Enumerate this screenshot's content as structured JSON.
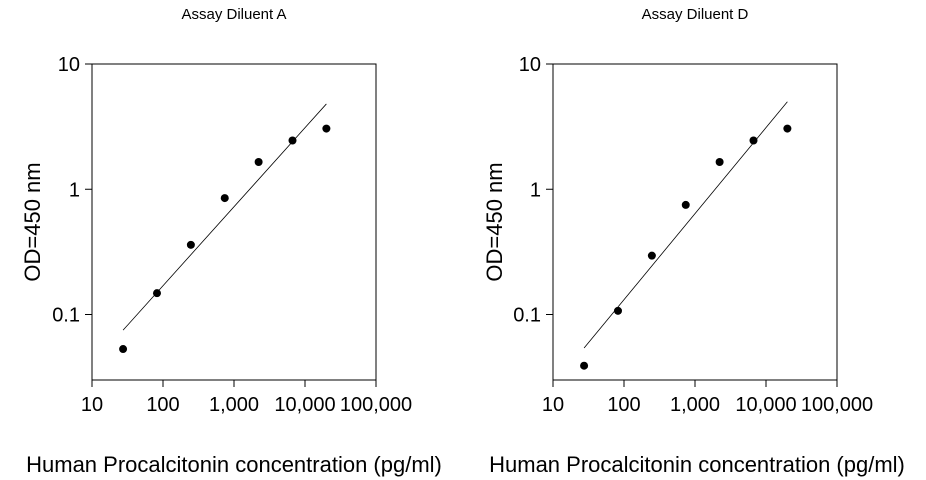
{
  "chart_data": [
    {
      "type": "scatter",
      "title": "Assay Diluent A",
      "xlabel": "Human Procalcitonin concentration (pg/ml)",
      "ylabel": "OD=450 nm",
      "x_scale": "log",
      "y_scale": "log",
      "xlim": [
        10,
        100000
      ],
      "ylim": [
        0.03,
        10
      ],
      "x_ticks": [
        10,
        100,
        1000,
        10000,
        100000
      ],
      "x_tick_labels": [
        "10",
        "100",
        "1,000",
        "10,000",
        "100,000"
      ],
      "y_ticks": [
        0.1,
        1,
        10
      ],
      "y_tick_labels": [
        "0.1",
        "1",
        "10"
      ],
      "grid": false,
      "points": [
        {
          "x": 27.4,
          "y": 0.053
        },
        {
          "x": 82.3,
          "y": 0.148
        },
        {
          "x": 247,
          "y": 0.36
        },
        {
          "x": 741,
          "y": 0.85
        },
        {
          "x": 2222,
          "y": 1.65
        },
        {
          "x": 6667,
          "y": 2.45
        },
        {
          "x": 20000,
          "y": 3.05
        }
      ],
      "fit_line": [
        {
          "x": 27.4,
          "y": 0.075
        },
        {
          "x": 20000,
          "y": 4.8
        }
      ]
    },
    {
      "type": "scatter",
      "title": "Assay Diluent D",
      "xlabel": "Human Procalcitonin concentration (pg/ml)",
      "ylabel": "OD=450 nm",
      "x_scale": "log",
      "y_scale": "log",
      "xlim": [
        10,
        100000
      ],
      "ylim": [
        0.03,
        10
      ],
      "x_ticks": [
        10,
        100,
        1000,
        10000,
        100000
      ],
      "x_tick_labels": [
        "10",
        "100",
        "1,000",
        "10,000",
        "100,000"
      ],
      "y_ticks": [
        0.1,
        1,
        10
      ],
      "y_tick_labels": [
        "0.1",
        "1",
        "10"
      ],
      "grid": false,
      "points": [
        {
          "x": 27.4,
          "y": 0.039
        },
        {
          "x": 82.3,
          "y": 0.107
        },
        {
          "x": 247,
          "y": 0.295
        },
        {
          "x": 741,
          "y": 0.75
        },
        {
          "x": 2222,
          "y": 1.65
        },
        {
          "x": 6667,
          "y": 2.45
        },
        {
          "x": 20000,
          "y": 3.05
        }
      ],
      "fit_line": [
        {
          "x": 27.4,
          "y": 0.054
        },
        {
          "x": 20000,
          "y": 5.0
        }
      ]
    }
  ]
}
